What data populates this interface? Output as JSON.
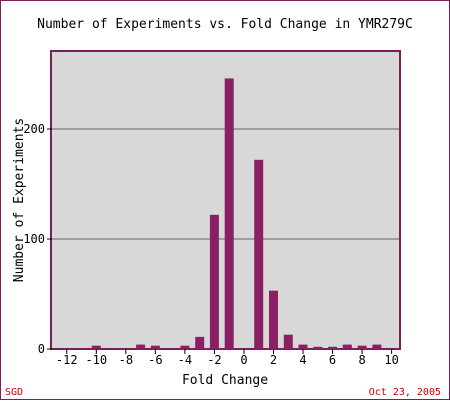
{
  "chart_data": {
    "type": "bar",
    "title": "Number of Experiments vs. Fold Change in YMR279C",
    "xlabel": "Fold Change",
    "ylabel": "Number of Experiments",
    "xlim": [
      -13,
      10.5
    ],
    "ylim": [
      0,
      270
    ],
    "x_ticks": [
      -12,
      -10,
      -8,
      -6,
      -4,
      -2,
      0,
      2,
      4,
      6,
      8,
      10
    ],
    "x_tick_labels": [
      "-12",
      "-10",
      "-8",
      "-6",
      "-4",
      "-2",
      "0",
      "2",
      "4",
      "6",
      "8",
      "10"
    ],
    "y_ticks": [
      0,
      100,
      200
    ],
    "y_tick_labels": [
      "0",
      "100",
      "200"
    ],
    "grid": true,
    "x": [
      -10,
      -7,
      -6,
      -4,
      -3,
      -2,
      -1,
      1,
      2,
      3,
      4,
      5,
      6,
      7,
      8,
      9
    ],
    "values": [
      3,
      4,
      3,
      3,
      11,
      122,
      246,
      172,
      53,
      13,
      4,
      2,
      2,
      4,
      3,
      4
    ],
    "colors": {
      "bar": "#8b1f66",
      "plot_bg": "#d8d8d8",
      "border": "#7a1f5c",
      "grid": "#666666",
      "footer_text": "#cc0000"
    }
  },
  "footer": {
    "source": "SGD",
    "date": "Oct 23, 2005"
  }
}
